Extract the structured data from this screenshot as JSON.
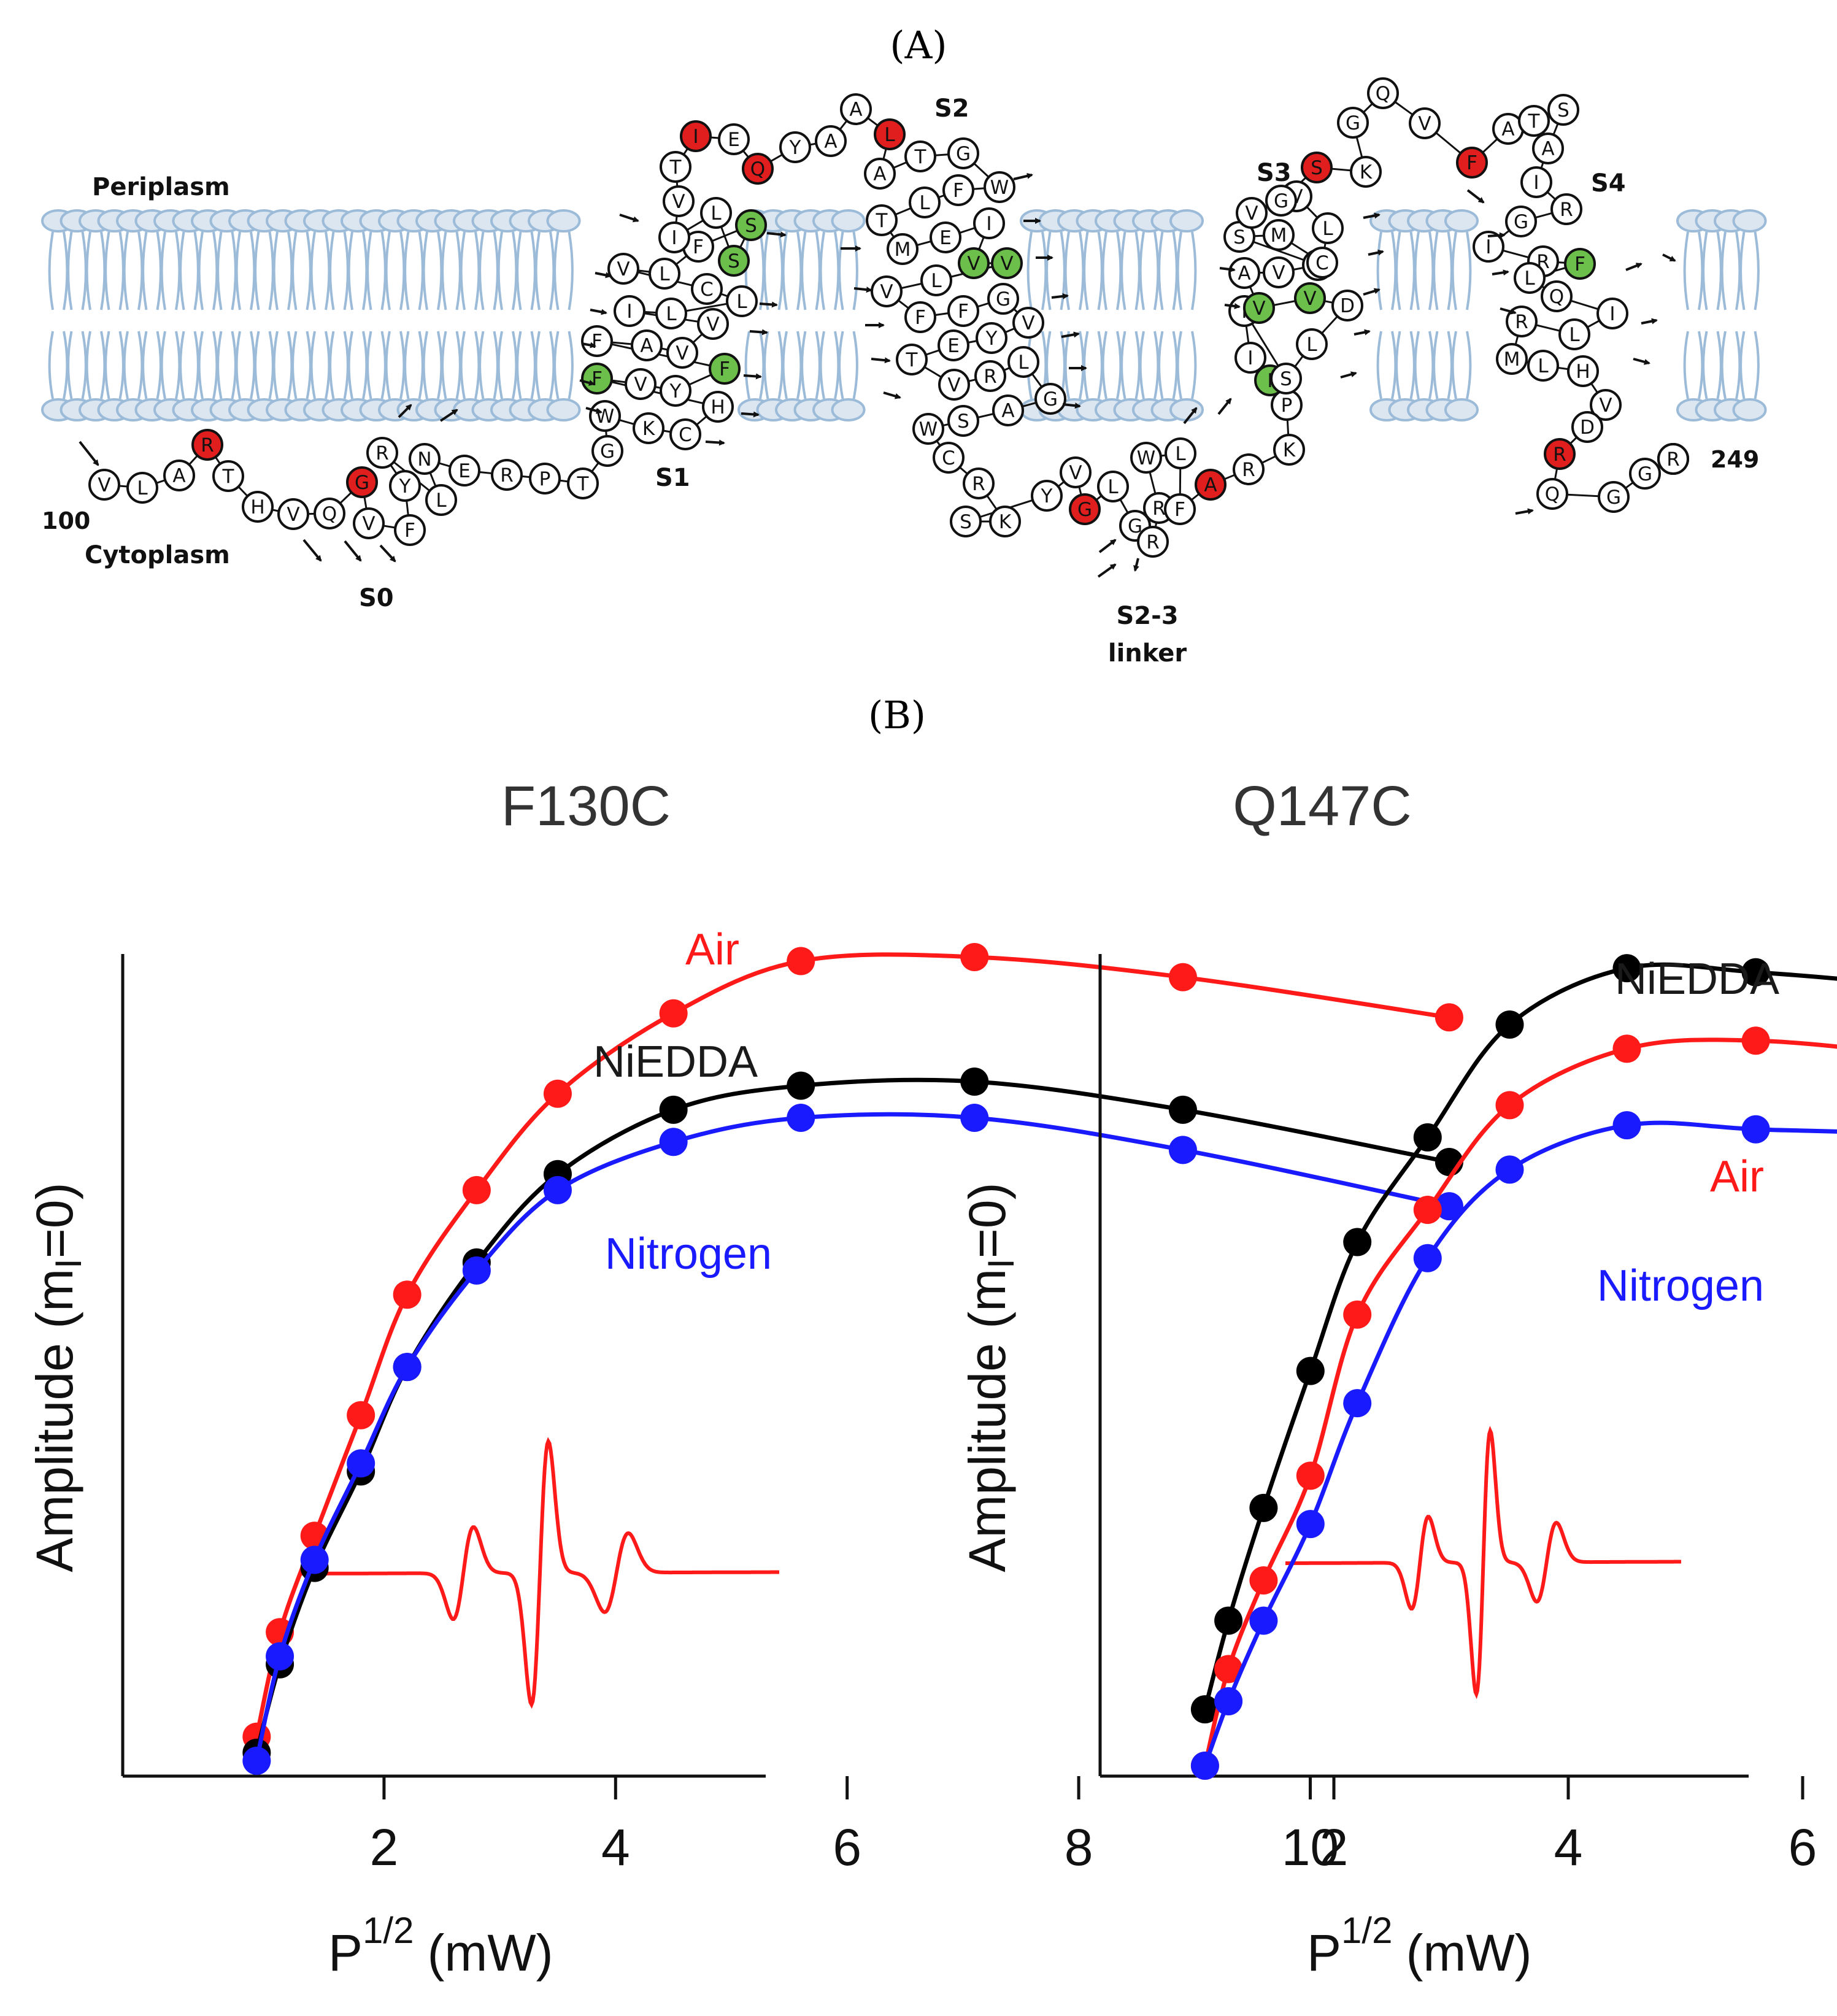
{
  "panel_a": {
    "label": "(A)",
    "periplasm": "Periplasm",
    "cytoplasm": "Cytoplasm",
    "start": "100",
    "end": "249",
    "segments": [
      "S0",
      "S1",
      "S2",
      "S3",
      "S4"
    ],
    "linker": [
      "S2-3",
      "linker"
    ],
    "colors": {
      "red": "#e01e1e",
      "green": "#6cbf4a",
      "membrane": "#9cbbd8"
    },
    "residues": [
      {
        "aa": "V",
        "c": "w"
      },
      {
        "aa": "L",
        "c": "w"
      },
      {
        "aa": "A",
        "c": "w"
      },
      {
        "aa": "R",
        "c": "r"
      },
      {
        "aa": "T",
        "c": "w"
      },
      {
        "aa": "H",
        "c": "w"
      },
      {
        "aa": "V",
        "c": "w"
      },
      {
        "aa": "Q",
        "c": "w"
      },
      {
        "aa": "G",
        "c": "r"
      },
      {
        "aa": "V",
        "c": "w"
      },
      {
        "aa": "F",
        "c": "w"
      },
      {
        "aa": "Y",
        "c": "w"
      },
      {
        "aa": "R",
        "c": "w"
      },
      {
        "aa": "L",
        "c": "w"
      },
      {
        "aa": "N",
        "c": "w"
      },
      {
        "aa": "E",
        "c": "w"
      },
      {
        "aa": "R",
        "c": "w"
      },
      {
        "aa": "P",
        "c": "w"
      },
      {
        "aa": "T",
        "c": "w"
      },
      {
        "aa": "G",
        "c": "w"
      },
      {
        "aa": "W",
        "c": "w"
      },
      {
        "aa": "K",
        "c": "w"
      },
      {
        "aa": "C",
        "c": "w"
      },
      {
        "aa": "H",
        "c": "w"
      },
      {
        "aa": "F",
        "c": "g"
      },
      {
        "aa": "V",
        "c": "w"
      },
      {
        "aa": "Y",
        "c": "w"
      },
      {
        "aa": "F",
        "c": "g"
      },
      {
        "aa": "F",
        "c": "w"
      },
      {
        "aa": "A",
        "c": "w"
      },
      {
        "aa": "V",
        "c": "w"
      },
      {
        "aa": "V",
        "c": "w"
      },
      {
        "aa": "I",
        "c": "w"
      },
      {
        "aa": "L",
        "c": "w"
      },
      {
        "aa": "L",
        "c": "w"
      },
      {
        "aa": "C",
        "c": "w"
      },
      {
        "aa": "V",
        "c": "w"
      },
      {
        "aa": "L",
        "c": "w"
      },
      {
        "aa": "F",
        "c": "w"
      },
      {
        "aa": "S",
        "c": "g"
      },
      {
        "aa": "S",
        "c": "g"
      },
      {
        "aa": "L",
        "c": "w"
      },
      {
        "aa": "I",
        "c": "w"
      },
      {
        "aa": "V",
        "c": "w"
      },
      {
        "aa": "T",
        "c": "w"
      },
      {
        "aa": "I",
        "c": "r"
      },
      {
        "aa": "E",
        "c": "w"
      },
      {
        "aa": "Q",
        "c": "r"
      },
      {
        "aa": "Y",
        "c": "w"
      },
      {
        "aa": "A",
        "c": "w"
      },
      {
        "aa": "A",
        "c": "w"
      },
      {
        "aa": "L",
        "c": "r"
      },
      {
        "aa": "A",
        "c": "w"
      },
      {
        "aa": "T",
        "c": "w"
      },
      {
        "aa": "G",
        "c": "w"
      },
      {
        "aa": "W",
        "c": "w"
      },
      {
        "aa": "F",
        "c": "w"
      },
      {
        "aa": "L",
        "c": "w"
      },
      {
        "aa": "T",
        "c": "w"
      },
      {
        "aa": "M",
        "c": "w"
      },
      {
        "aa": "E",
        "c": "w"
      },
      {
        "aa": "I",
        "c": "w"
      },
      {
        "aa": "V",
        "c": "g"
      },
      {
        "aa": "V",
        "c": "g"
      },
      {
        "aa": "L",
        "c": "w"
      },
      {
        "aa": "V",
        "c": "w"
      },
      {
        "aa": "F",
        "c": "w"
      },
      {
        "aa": "F",
        "c": "w"
      },
      {
        "aa": "G",
        "c": "w"
      },
      {
        "aa": "V",
        "c": "w"
      },
      {
        "aa": "Y",
        "c": "w"
      },
      {
        "aa": "E",
        "c": "w"
      },
      {
        "aa": "T",
        "c": "w"
      },
      {
        "aa": "V",
        "c": "w"
      },
      {
        "aa": "R",
        "c": "w"
      },
      {
        "aa": "L",
        "c": "w"
      },
      {
        "aa": "G",
        "c": "w"
      },
      {
        "aa": "A",
        "c": "w"
      },
      {
        "aa": "S",
        "c": "w"
      },
      {
        "aa": "W",
        "c": "w"
      },
      {
        "aa": "C",
        "c": "w"
      },
      {
        "aa": "R",
        "c": "w"
      },
      {
        "aa": "K",
        "c": "w"
      },
      {
        "aa": "S",
        "c": "w"
      },
      {
        "aa": "Y",
        "c": "w"
      },
      {
        "aa": "V",
        "c": "w"
      },
      {
        "aa": "G",
        "c": "r"
      },
      {
        "aa": "L",
        "c": "w"
      },
      {
        "aa": "G",
        "c": "w"
      },
      {
        "aa": "R",
        "c": "w"
      },
      {
        "aa": "R",
        "c": "w"
      },
      {
        "aa": "W",
        "c": "w"
      },
      {
        "aa": "L",
        "c": "w"
      },
      {
        "aa": "F",
        "c": "w"
      },
      {
        "aa": "A",
        "c": "r"
      },
      {
        "aa": "R",
        "c": "w"
      },
      {
        "aa": "K",
        "c": "w"
      },
      {
        "aa": "P",
        "c": "w"
      },
      {
        "aa": "I",
        "c": "g"
      },
      {
        "aa": "I",
        "c": "w"
      },
      {
        "aa": "I",
        "c": "w"
      },
      {
        "aa": "S",
        "c": "w"
      },
      {
        "aa": "L",
        "c": "w"
      },
      {
        "aa": "D",
        "c": "w"
      },
      {
        "aa": "V",
        "c": "g"
      },
      {
        "aa": "V",
        "c": "g"
      },
      {
        "aa": "A",
        "c": "w"
      },
      {
        "aa": "V",
        "c": "w"
      },
      {
        "aa": "V",
        "c": "w"
      },
      {
        "aa": "S",
        "c": "w"
      },
      {
        "aa": "M",
        "c": "w"
      },
      {
        "aa": "C",
        "c": "w"
      },
      {
        "aa": "L",
        "c": "w"
      },
      {
        "aa": "V",
        "c": "w"
      },
      {
        "aa": "V",
        "c": "w"
      },
      {
        "aa": "G",
        "c": "w"
      },
      {
        "aa": "S",
        "c": "r"
      },
      {
        "aa": "K",
        "c": "w"
      },
      {
        "aa": "G",
        "c": "w"
      },
      {
        "aa": "Q",
        "c": "w"
      },
      {
        "aa": "V",
        "c": "w"
      },
      {
        "aa": "F",
        "c": "r"
      },
      {
        "aa": "A",
        "c": "w"
      },
      {
        "aa": "T",
        "c": "w"
      },
      {
        "aa": "S",
        "c": "w"
      },
      {
        "aa": "A",
        "c": "w"
      },
      {
        "aa": "I",
        "c": "w"
      },
      {
        "aa": "R",
        "c": "w"
      },
      {
        "aa": "G",
        "c": "w"
      },
      {
        "aa": "I",
        "c": "w"
      },
      {
        "aa": "R",
        "c": "w"
      },
      {
        "aa": "F",
        "c": "g"
      },
      {
        "aa": "L",
        "c": "w"
      },
      {
        "aa": "Q",
        "c": "w"
      },
      {
        "aa": "I",
        "c": "w"
      },
      {
        "aa": "L",
        "c": "w"
      },
      {
        "aa": "R",
        "c": "w"
      },
      {
        "aa": "M",
        "c": "w"
      },
      {
        "aa": "L",
        "c": "w"
      },
      {
        "aa": "H",
        "c": "w"
      },
      {
        "aa": "V",
        "c": "w"
      },
      {
        "aa": "D",
        "c": "w"
      },
      {
        "aa": "R",
        "c": "r"
      },
      {
        "aa": "Q",
        "c": "w"
      },
      {
        "aa": "G",
        "c": "w"
      },
      {
        "aa": "G",
        "c": "w"
      },
      {
        "aa": "T",
        "c": "w"
      },
      {
        "aa": "W",
        "c": "w"
      },
      {
        "aa": "R",
        "c": "w"
      }
    ]
  },
  "panel_b": {
    "label": "(B)",
    "series_colors": {
      "Air": "#ff1a1a",
      "NiEDDA": "#000000",
      "Nitrogen": "#1a1aff",
      "spectrum": "#ff1a1a"
    },
    "x_ticks": [
      "2",
      "4",
      "6",
      "8",
      "10"
    ],
    "xlabel_main": "P",
    "xlabel_sup": "1/2",
    "xlabel_unit": "(mW)",
    "ylabel_main": "Amplitude (m",
    "ylabel_sub": "I",
    "ylabel_end": "=0)"
  },
  "chart_data": [
    {
      "type": "scatter",
      "title": "F130C",
      "xlabel": "P1/2 (mW)",
      "ylabel": "Amplitude (mI=0)",
      "xlim": [
        0.3,
        11.5
      ],
      "ylim": [
        0,
        1
      ],
      "x": [
        0.9,
        1.1,
        1.4,
        1.8,
        2.2,
        2.8,
        3.5,
        4.5,
        5.6,
        7.1,
        8.9,
        11.2
      ],
      "series": [
        {
          "name": "Air",
          "values": [
            0.03,
            0.16,
            0.28,
            0.43,
            0.58,
            0.71,
            0.83,
            0.93,
            0.995,
            1.0,
            0.975,
            0.925
          ]
        },
        {
          "name": "NiEDDA",
          "values": [
            0.01,
            0.12,
            0.24,
            0.36,
            0.49,
            0.62,
            0.73,
            0.81,
            0.84,
            0.845,
            0.81,
            0.745
          ]
        },
        {
          "name": "Nitrogen",
          "values": [
            0.0,
            0.13,
            0.25,
            0.37,
            0.49,
            0.61,
            0.71,
            0.77,
            0.8,
            0.8,
            0.76,
            0.69
          ]
        }
      ],
      "label_positions": [
        "top-right",
        "upper-middle",
        "middle-right"
      ]
    },
    {
      "type": "scatter",
      "title": "Q147C",
      "xlabel": "P1/2 (mW)",
      "ylabel": "Amplitude (mI=0)",
      "xlim": [
        0.3,
        11.5
      ],
      "ylim": [
        0,
        1
      ],
      "x": [
        0.9,
        1.1,
        1.4,
        1.8,
        2.2,
        2.8,
        3.5,
        4.5,
        5.6,
        7.1,
        8.9,
        11.2
      ],
      "series": [
        {
          "name": "NiEDDA",
          "values": [
            0.07,
            0.18,
            0.32,
            0.49,
            0.65,
            0.78,
            0.92,
            0.99,
            0.985,
            0.965,
            0.93,
            0.835
          ]
        },
        {
          "name": "Air",
          "values": [
            0.0,
            0.12,
            0.23,
            0.36,
            0.56,
            0.69,
            0.82,
            0.89,
            0.9,
            0.88,
            0.85,
            0.79
          ]
        },
        {
          "name": "Nitrogen",
          "values": [
            0.0,
            0.08,
            0.18,
            0.3,
            0.45,
            0.63,
            0.74,
            0.795,
            0.79,
            0.78,
            0.74,
            0.66
          ]
        }
      ],
      "label_positions": [
        "top-right",
        "middle-right",
        "lower-right"
      ]
    }
  ]
}
